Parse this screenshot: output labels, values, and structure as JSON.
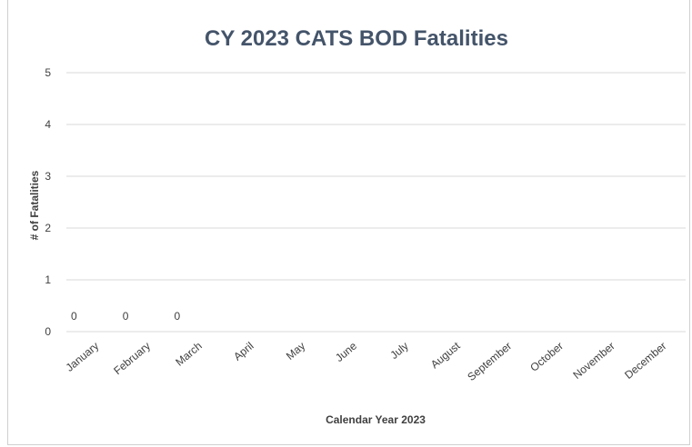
{
  "chart_data": {
    "type": "bar",
    "title": "CY 2023 CATS BOD Fatalities",
    "xlabel": "Calendar Year 2023",
    "ylabel": "# of Fatalities",
    "categories": [
      "January",
      "February",
      "March",
      "April",
      "May",
      "June",
      "July",
      "August",
      "September",
      "October",
      "November",
      "December"
    ],
    "values": [
      0,
      0,
      0,
      null,
      null,
      null,
      null,
      null,
      null,
      null,
      null,
      null
    ],
    "data_labels": [
      "0",
      "0",
      "0",
      "",
      "",
      "",
      "",
      "",
      "",
      "",
      "",
      ""
    ],
    "ylim": [
      0,
      5
    ],
    "yticks": [
      "0",
      "1",
      "2",
      "3",
      "4",
      "5"
    ],
    "grid": true,
    "legend": "none",
    "colors": {
      "title": "#44546a",
      "text": "#404040",
      "grid": "#d9d9d9"
    }
  }
}
